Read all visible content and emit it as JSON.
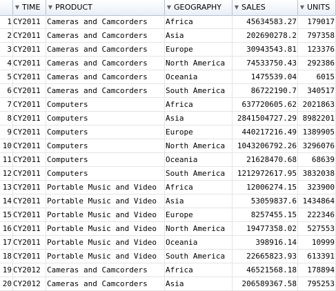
{
  "columns": [
    "TIME",
    "PRODUCT",
    "GEOGRAPHY",
    "SALES",
    "UNITS"
  ],
  "rows": [
    {
      "n": "1",
      "time": "CY2011",
      "product": "Cameras and Camcorders",
      "geography": "Africa",
      "sales": "45634583.27",
      "units": "179017"
    },
    {
      "n": "2",
      "time": "CY2011",
      "product": "Cameras and Camcorders",
      "geography": "Asia",
      "sales": "202690278.2",
      "units": "797358"
    },
    {
      "n": "3",
      "time": "CY2011",
      "product": "Cameras and Camcorders",
      "geography": "Europe",
      "sales": "30943543.81",
      "units": "123376"
    },
    {
      "n": "4",
      "time": "CY2011",
      "product": "Cameras and Camcorders",
      "geography": "North America",
      "sales": "74533750.43",
      "units": "292386"
    },
    {
      "n": "5",
      "time": "CY2011",
      "product": "Cameras and Camcorders",
      "geography": "Oceania",
      "sales": "1475539.04",
      "units": "6015"
    },
    {
      "n": "6",
      "time": "CY2011",
      "product": "Cameras and Camcorders",
      "geography": "South America",
      "sales": "86722190.7",
      "units": "340517"
    },
    {
      "n": "7",
      "time": "CY2011",
      "product": "Computers",
      "geography": "Africa",
      "sales": "637720605.62",
      "units": "2021863"
    },
    {
      "n": "8",
      "time": "CY2011",
      "product": "Computers",
      "geography": "Asia",
      "sales": "2841504727.29",
      "units": "8982201"
    },
    {
      "n": "9",
      "time": "CY2011",
      "product": "Computers",
      "geography": "Europe",
      "sales": "440217216.49",
      "units": "1389905"
    },
    {
      "n": "10",
      "time": "CY2011",
      "product": "Computers",
      "geography": "North America",
      "sales": "1043206792.26",
      "units": "3296076"
    },
    {
      "n": "11",
      "time": "CY2011",
      "product": "Computers",
      "geography": "Oceania",
      "sales": "21628470.68",
      "units": "68639"
    },
    {
      "n": "12",
      "time": "CY2011",
      "product": "Computers",
      "geography": "South America",
      "sales": "1212972617.95",
      "units": "3832038"
    },
    {
      "n": "13",
      "time": "CY2011",
      "product": "Portable Music and Video",
      "geography": "Africa",
      "sales": "12006274.15",
      "units": "323900"
    },
    {
      "n": "14",
      "time": "CY2011",
      "product": "Portable Music and Video",
      "geography": "Asia",
      "sales": "53059837.6",
      "units": "1434864"
    },
    {
      "n": "15",
      "time": "CY2011",
      "product": "Portable Music and Video",
      "geography": "Europe",
      "sales": "8257455.15",
      "units": "222346"
    },
    {
      "n": "16",
      "time": "CY2011",
      "product": "Portable Music and Video",
      "geography": "North America",
      "sales": "19477358.02",
      "units": "527553"
    },
    {
      "n": "17",
      "time": "CY2011",
      "product": "Portable Music and Video",
      "geography": "Oceania",
      "sales": "398916.14",
      "units": "10999"
    },
    {
      "n": "18",
      "time": "CY2011",
      "product": "Portable Music and Video",
      "geography": "South America",
      "sales": "22665823.93",
      "units": "613391"
    },
    {
      "n": "19",
      "time": "CY2012",
      "product": "Cameras and Camcorders",
      "geography": "Africa",
      "sales": "46521568.18",
      "units": "178894"
    },
    {
      "n": "20",
      "time": "CY2012",
      "product": "Cameras and Camcorders",
      "geography": "Asia",
      "sales": "206589367.58",
      "units": "795253"
    }
  ]
}
